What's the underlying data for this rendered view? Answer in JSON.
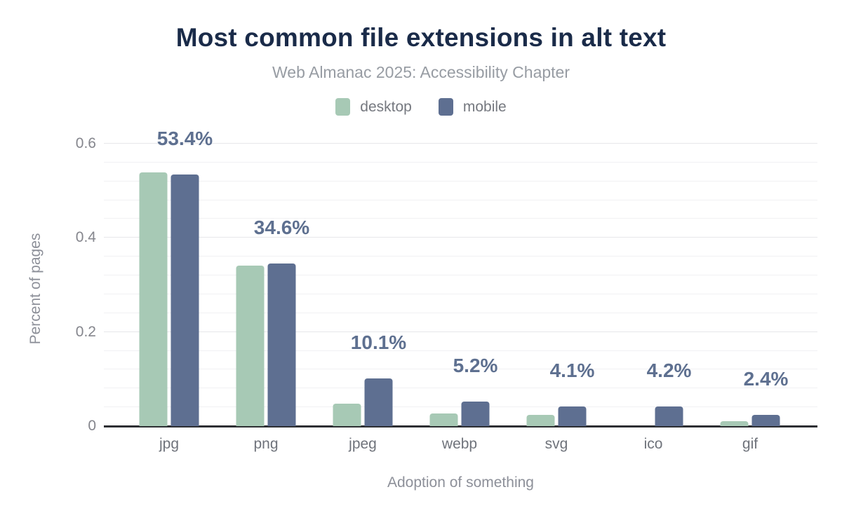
{
  "header": {
    "title": "Most common file extensions in alt text",
    "subtitle": "Web Almanac 2025: Accessibility Chapter"
  },
  "colors": {
    "title_text": "#1a2b49",
    "subtitle_text": "#979ca3",
    "desktop_bar": "#a7c9b5",
    "mobile_bar": "#5e6f91",
    "data_label_text": "#5e7090",
    "axis_line": "#2d2f33",
    "grid_minor": "#f1f1f3",
    "grid_major": "#e6e7eb"
  },
  "chart_data": {
    "type": "bar",
    "title": "Most common file extensions in alt text",
    "subtitle": "Web Almanac 2025: Accessibility Chapter",
    "xlabel": "Adoption of something",
    "ylabel": "Percent of pages",
    "categories": [
      "jpg",
      "png",
      "jpeg",
      "webp",
      "svg",
      "ico",
      "gif"
    ],
    "series": [
      {
        "name": "desktop",
        "color": "#a7c9b5",
        "values": [
          0.539,
          0.341,
          0.048,
          0.027,
          0.024,
          0,
          0.01
        ]
      },
      {
        "name": "mobile",
        "color": "#5e6f91",
        "values": [
          0.534,
          0.346,
          0.101,
          0.052,
          0.041,
          0.042,
          0.024
        ]
      }
    ],
    "data_labels": [
      "53.4%",
      "34.6%",
      "10.1%",
      "5.2%",
      "4.1%",
      "4.2%",
      "2.4%"
    ],
    "data_label_series": "mobile",
    "ylim": [
      0,
      0.6
    ],
    "yticks": [
      {
        "label": "0",
        "value": 0
      },
      {
        "label": "0.2",
        "value": 0.2
      },
      {
        "label": "0.4",
        "value": 0.4
      },
      {
        "label": "0.6",
        "value": 0.6
      }
    ],
    "minor_grid_step": 0.04,
    "grid": true,
    "legend_position": "top"
  }
}
